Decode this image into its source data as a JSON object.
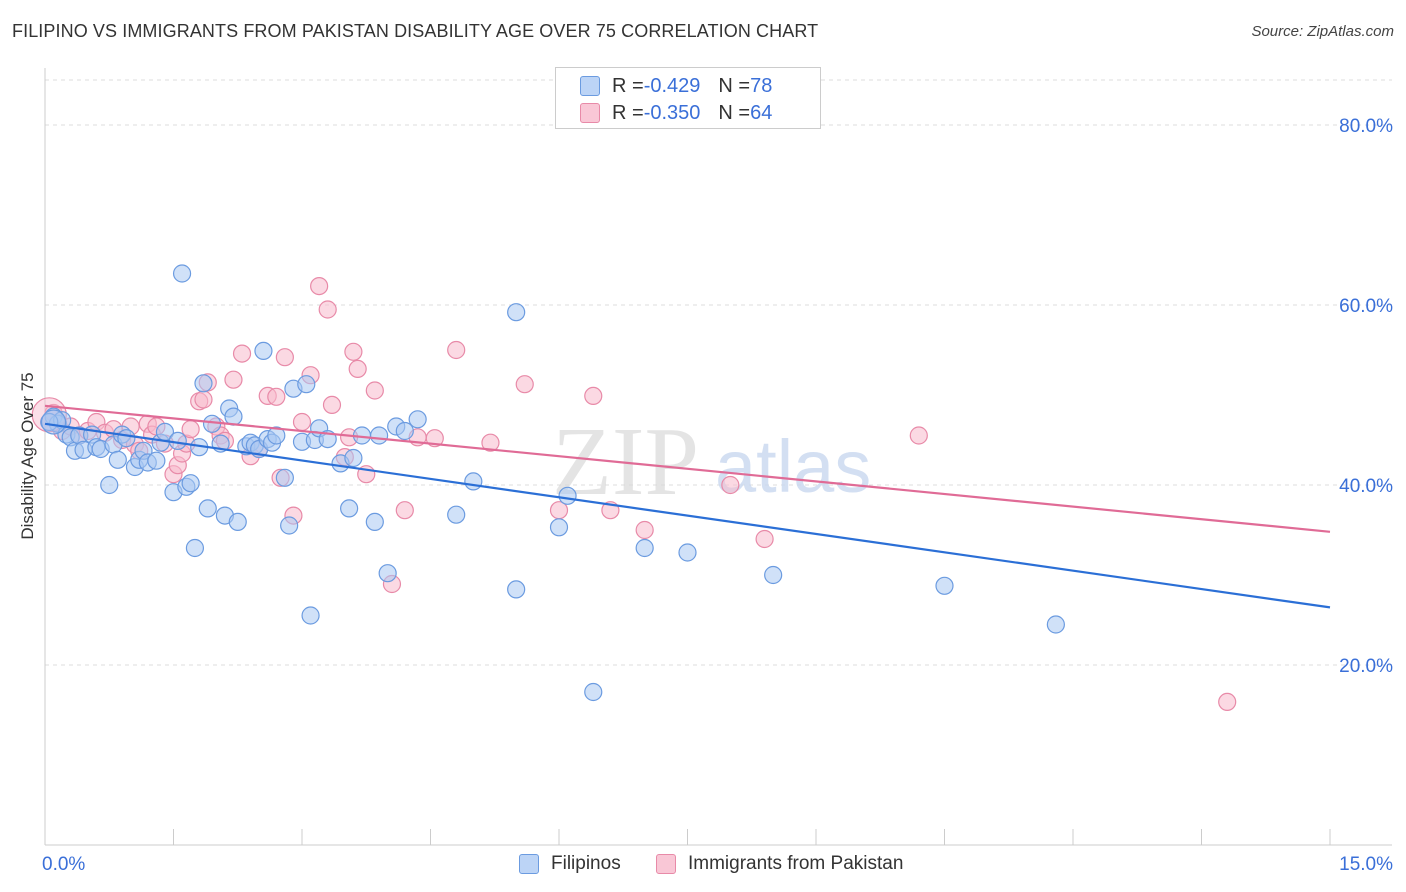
{
  "header": {
    "title": "FILIPINO VS IMMIGRANTS FROM PAKISTAN DISABILITY AGE OVER 75 CORRELATION CHART",
    "source": "Source: ZipAtlas.com"
  },
  "legend": {
    "series1": {
      "r_label": "R = ",
      "r_value": "-0.429",
      "n_label": "N = ",
      "n_value": "78"
    },
    "series2": {
      "r_label": "R = ",
      "r_value": "-0.350",
      "n_label": "N = ",
      "n_value": "64"
    }
  },
  "bottom_legend": {
    "series1": "Filipinos",
    "series2": "Immigrants from Pakistan"
  },
  "watermark": {
    "zip": "ZIP",
    "atlas": "atlas"
  },
  "colors": {
    "blue_fill": "#a9c8f3",
    "blue_stroke": "#6b9be0",
    "blue_line": "#2b6fd6",
    "pink_fill": "#f7b9cc",
    "pink_stroke": "#e88aa8",
    "pink_line": "#e06b96",
    "grid": "#dddddd",
    "tick_label": "#3a6fd8"
  },
  "chart_data": {
    "type": "scatter",
    "title": "FILIPINO VS IMMIGRANTS FROM PAKISTAN DISABILITY AGE OVER 75 CORRELATION CHART",
    "xlabel": "",
    "ylabel": "Disability Age Over 75",
    "xlim": [
      0,
      15
    ],
    "ylim": [
      0,
      85
    ],
    "x_tick_labels": [
      "0.0%",
      "15.0%"
    ],
    "y_ticks": [
      20,
      40,
      60,
      80
    ],
    "y_tick_labels": [
      "20.0%",
      "40.0%",
      "60.0%",
      "80.0%"
    ],
    "series": [
      {
        "name": "Filipinos",
        "R": -0.429,
        "N": 78,
        "trend": {
          "x": [
            0,
            15
          ],
          "y": [
            46.8,
            26.4
          ]
        },
        "points": [
          [
            0.1,
            47.6
          ],
          [
            0.15,
            46.8
          ],
          [
            0.2,
            47.2
          ],
          [
            0.25,
            45.6
          ],
          [
            0.3,
            45.3
          ],
          [
            0.35,
            43.8
          ],
          [
            0.4,
            45.5
          ],
          [
            0.45,
            43.9
          ],
          [
            0.55,
            45.6
          ],
          [
            0.6,
            44.2
          ],
          [
            0.65,
            44.0
          ],
          [
            0.75,
            40.0
          ],
          [
            0.8,
            44.5
          ],
          [
            0.85,
            42.8
          ],
          [
            0.9,
            45.6
          ],
          [
            0.95,
            45.2
          ],
          [
            1.05,
            42.0
          ],
          [
            1.1,
            42.8
          ],
          [
            1.15,
            43.8
          ],
          [
            1.2,
            42.5
          ],
          [
            1.3,
            42.7
          ],
          [
            1.35,
            44.7
          ],
          [
            1.4,
            45.9
          ],
          [
            1.5,
            39.2
          ],
          [
            1.55,
            44.9
          ],
          [
            1.6,
            63.5
          ],
          [
            1.65,
            39.8
          ],
          [
            1.7,
            40.2
          ],
          [
            1.75,
            33.0
          ],
          [
            1.8,
            44.2
          ],
          [
            1.85,
            51.3
          ],
          [
            1.9,
            37.4
          ],
          [
            1.95,
            46.8
          ],
          [
            2.05,
            44.6
          ],
          [
            2.1,
            36.6
          ],
          [
            2.15,
            48.5
          ],
          [
            2.2,
            47.6
          ],
          [
            2.25,
            35.9
          ],
          [
            2.35,
            44.3
          ],
          [
            2.4,
            44.7
          ],
          [
            2.45,
            44.4
          ],
          [
            2.5,
            44.0
          ],
          [
            2.55,
            54.9
          ],
          [
            2.6,
            45.1
          ],
          [
            2.65,
            44.7
          ],
          [
            2.7,
            45.5
          ],
          [
            2.8,
            40.8
          ],
          [
            2.85,
            35.5
          ],
          [
            2.9,
            50.7
          ],
          [
            3.0,
            44.8
          ],
          [
            3.05,
            51.2
          ],
          [
            3.1,
            25.5
          ],
          [
            3.15,
            45.0
          ],
          [
            3.2,
            46.3
          ],
          [
            3.3,
            45.1
          ],
          [
            3.45,
            42.4
          ],
          [
            3.55,
            37.4
          ],
          [
            3.6,
            43.0
          ],
          [
            3.7,
            45.5
          ],
          [
            3.85,
            35.9
          ],
          [
            3.9,
            45.5
          ],
          [
            4.0,
            30.2
          ],
          [
            4.1,
            46.5
          ],
          [
            4.2,
            46.0
          ],
          [
            4.35,
            47.3
          ],
          [
            4.8,
            36.7
          ],
          [
            5.0,
            40.4
          ],
          [
            5.5,
            59.2
          ],
          [
            5.5,
            28.4
          ],
          [
            6.0,
            35.3
          ],
          [
            6.1,
            38.8
          ],
          [
            6.4,
            17.0
          ],
          [
            7.0,
            33.0
          ],
          [
            7.5,
            32.5
          ],
          [
            8.5,
            30.0
          ],
          [
            10.5,
            28.8
          ],
          [
            11.8,
            24.5
          ],
          [
            0.05,
            47.0
          ]
        ]
      },
      {
        "name": "Immigrants from Pakistan",
        "R": -0.35,
        "N": 64,
        "trend": {
          "x": [
            0,
            15
          ],
          "y": [
            48.8,
            34.8
          ]
        },
        "points": [
          [
            0.05,
            47.0
          ],
          [
            0.1,
            48.0
          ],
          [
            0.2,
            46.0
          ],
          [
            0.3,
            46.5
          ],
          [
            0.4,
            45.5
          ],
          [
            0.5,
            46.0
          ],
          [
            0.6,
            47.0
          ],
          [
            0.7,
            45.8
          ],
          [
            0.8,
            46.2
          ],
          [
            0.9,
            45.0
          ],
          [
            1.0,
            46.5
          ],
          [
            1.05,
            44.5
          ],
          [
            1.1,
            43.8
          ],
          [
            1.2,
            46.8
          ],
          [
            1.25,
            45.6
          ],
          [
            1.3,
            46.5
          ],
          [
            1.4,
            44.6
          ],
          [
            1.5,
            41.2
          ],
          [
            1.55,
            42.2
          ],
          [
            1.6,
            43.5
          ],
          [
            1.65,
            44.6
          ],
          [
            1.7,
            46.2
          ],
          [
            1.8,
            49.3
          ],
          [
            1.85,
            49.5
          ],
          [
            1.9,
            51.4
          ],
          [
            2.0,
            46.5
          ],
          [
            2.05,
            45.5
          ],
          [
            2.1,
            44.9
          ],
          [
            2.2,
            51.7
          ],
          [
            2.3,
            54.6
          ],
          [
            2.4,
            43.2
          ],
          [
            2.5,
            44.0
          ],
          [
            2.6,
            49.9
          ],
          [
            2.7,
            49.8
          ],
          [
            2.75,
            40.8
          ],
          [
            2.8,
            54.2
          ],
          [
            2.9,
            36.6
          ],
          [
            3.0,
            47.0
          ],
          [
            3.1,
            52.2
          ],
          [
            3.2,
            62.1
          ],
          [
            3.3,
            59.5
          ],
          [
            3.35,
            48.9
          ],
          [
            3.5,
            43.1
          ],
          [
            3.55,
            45.3
          ],
          [
            3.6,
            54.8
          ],
          [
            3.65,
            52.9
          ],
          [
            3.75,
            41.2
          ],
          [
            3.85,
            50.5
          ],
          [
            4.05,
            29.0
          ],
          [
            4.2,
            37.2
          ],
          [
            4.35,
            45.3
          ],
          [
            4.55,
            45.2
          ],
          [
            4.8,
            55.0
          ],
          [
            5.2,
            44.7
          ],
          [
            5.6,
            51.2
          ],
          [
            6.0,
            37.2
          ],
          [
            6.4,
            49.9
          ],
          [
            6.6,
            37.2
          ],
          [
            7.0,
            35.0
          ],
          [
            8.0,
            40.0
          ],
          [
            8.4,
            34.0
          ],
          [
            10.2,
            45.5
          ],
          [
            13.8,
            15.9
          ],
          [
            0.15,
            46.9
          ]
        ]
      }
    ]
  }
}
